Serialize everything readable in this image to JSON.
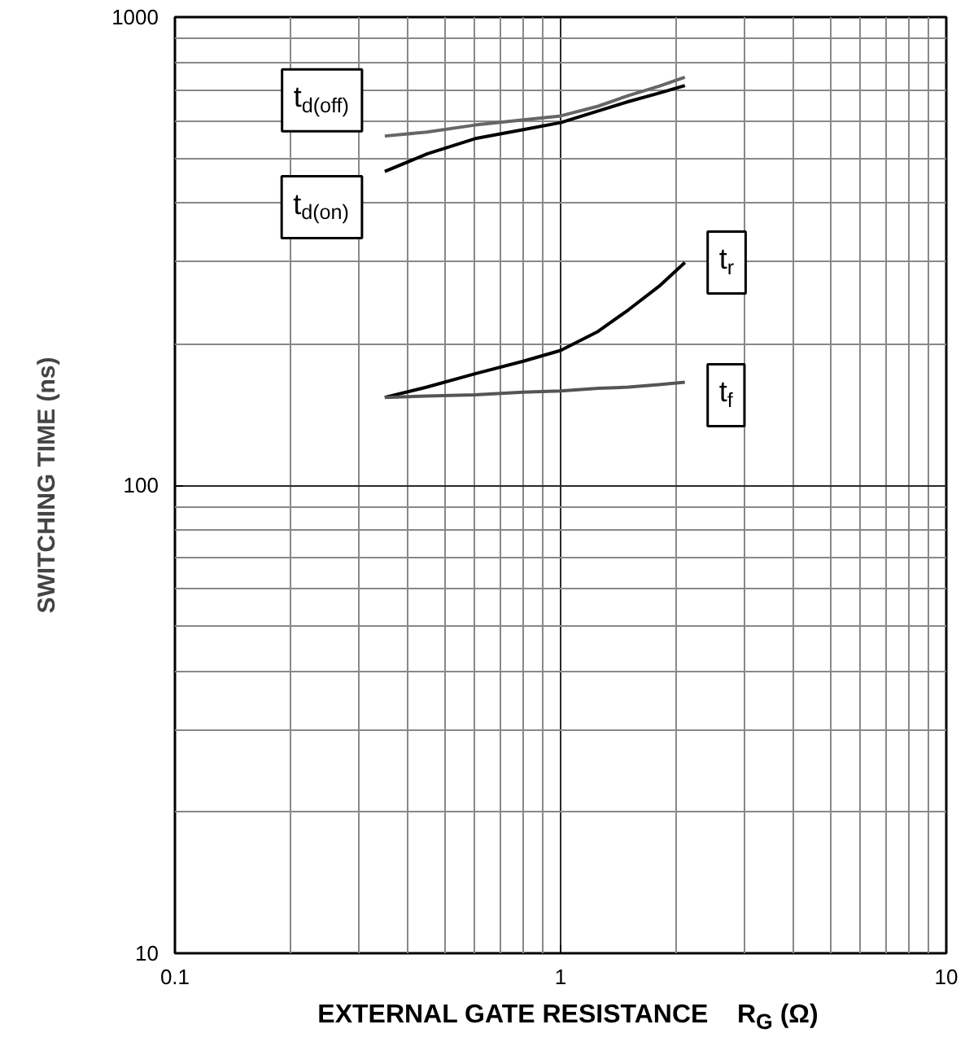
{
  "chart_data": {
    "type": "line",
    "xlabel": "EXTERNAL GATE RESISTANCE    R$_{G}$ (Ω)",
    "ylabel": "SWITCHING TIME (ns)",
    "log": "xy",
    "xlim": [
      0.1,
      10
    ],
    "ylim": [
      10,
      1000
    ],
    "xticks": [
      0.1,
      1,
      10
    ],
    "yticks": [
      10,
      100,
      1000
    ],
    "grid": true,
    "series": [
      {
        "name": "t$_{d(off)}$",
        "color": "#666666",
        "x": [
          0.35,
          0.45,
          0.6,
          0.8,
          1,
          1.25,
          1.5,
          1.8,
          2.1
        ],
        "values": [
          557,
          568,
          588,
          603,
          615,
          645,
          680,
          712,
          744
        ]
      },
      {
        "name": "t$_{d(on)}$",
        "color": "#000000",
        "x": [
          0.35,
          0.45,
          0.6,
          0.8,
          1,
          1.25,
          1.5,
          1.8,
          2.1
        ],
        "values": [
          468,
          510,
          550,
          575,
          595,
          630,
          660,
          688,
          714
        ]
      },
      {
        "name": "t$_{r}$",
        "color": "#000000",
        "x": [
          0.35,
          0.45,
          0.6,
          0.8,
          1,
          1.25,
          1.5,
          1.8,
          2.1
        ],
        "values": [
          154,
          162,
          173,
          184,
          194,
          213,
          237,
          266,
          299
        ]
      },
      {
        "name": "t$_{f}$",
        "color": "#555555",
        "x": [
          0.35,
          0.45,
          0.6,
          0.8,
          1,
          1.25,
          1.5,
          1.8,
          2.1
        ],
        "values": [
          154,
          155,
          156,
          158,
          159,
          161,
          162,
          164,
          166
        ]
      }
    ]
  }
}
